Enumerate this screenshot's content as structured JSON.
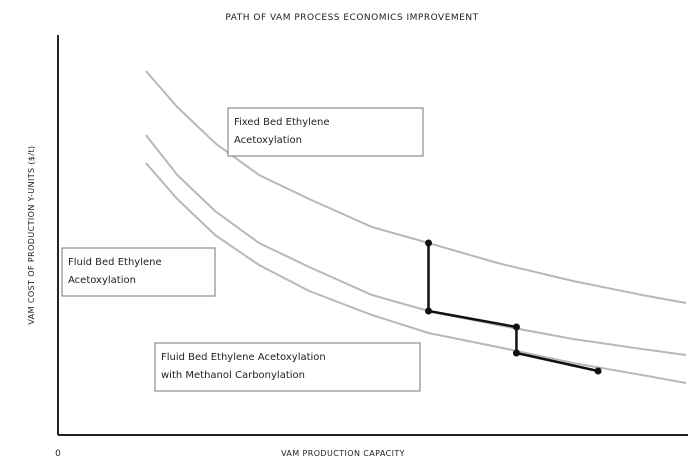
{
  "chart_data": {
    "type": "line",
    "title": "PATH OF VAM PROCESS ECONOMICS IMPROVEMENT",
    "xlabel": "VAM PRODUCTION CAPACITY",
    "ylabel": "VAM COST OF PRODUCTION Y-UNITS ($/t)",
    "x_tick_labels": [
      "0"
    ],
    "xlim": [
      0,
      10
    ],
    "ylim": [
      0,
      10
    ],
    "grid": false,
    "series": [
      {
        "name": "Fixed Bed Ethylene Acetoxylation",
        "color": "#b8b8b8",
        "x": [
          1.4,
          1.9,
          2.5,
          3.2,
          4.0,
          5.0,
          5.9,
          7.0,
          8.2,
          9.3,
          10.0
        ],
        "y": [
          9.1,
          8.2,
          7.3,
          6.5,
          5.9,
          5.2,
          4.8,
          4.3,
          3.85,
          3.5,
          3.3
        ]
      },
      {
        "name": "Fluid Bed Ethylene Acetoxylation",
        "color": "#b8b8b8",
        "x": [
          1.4,
          1.9,
          2.5,
          3.2,
          4.0,
          5.0,
          5.9,
          7.0,
          8.2,
          9.3,
          10.0
        ],
        "y": [
          7.5,
          6.5,
          5.6,
          4.8,
          4.2,
          3.5,
          3.1,
          2.75,
          2.4,
          2.15,
          2.0
        ]
      },
      {
        "name": "Fluid Bed Ethylene Acetoxylation with Methanol Carbonylation",
        "color": "#b8b8b8",
        "x": [
          1.4,
          1.9,
          2.5,
          3.2,
          4.0,
          5.0,
          5.9,
          7.0,
          8.2,
          9.3,
          10.0
        ],
        "y": [
          6.8,
          5.9,
          5.0,
          4.25,
          3.6,
          3.0,
          2.55,
          2.2,
          1.8,
          1.5,
          1.3
        ]
      }
    ],
    "path": {
      "color": "#111111",
      "points": [
        {
          "x": 5.9,
          "y": 4.8
        },
        {
          "x": 5.9,
          "y": 3.1
        },
        {
          "x": 7.3,
          "y": 2.7
        },
        {
          "x": 7.3,
          "y": 2.05
        },
        {
          "x": 8.6,
          "y": 1.6
        }
      ]
    },
    "annotations": [
      {
        "lines": [
          "Fixed Bed Ethylene",
          "Acetoxylation"
        ]
      },
      {
        "lines": [
          "Fluid Bed Ethylene",
          "Acetoxylation"
        ]
      },
      {
        "lines": [
          "Fluid Bed Ethylene Acetoxylation",
          "with Methanol Carbonylation"
        ]
      }
    ]
  }
}
